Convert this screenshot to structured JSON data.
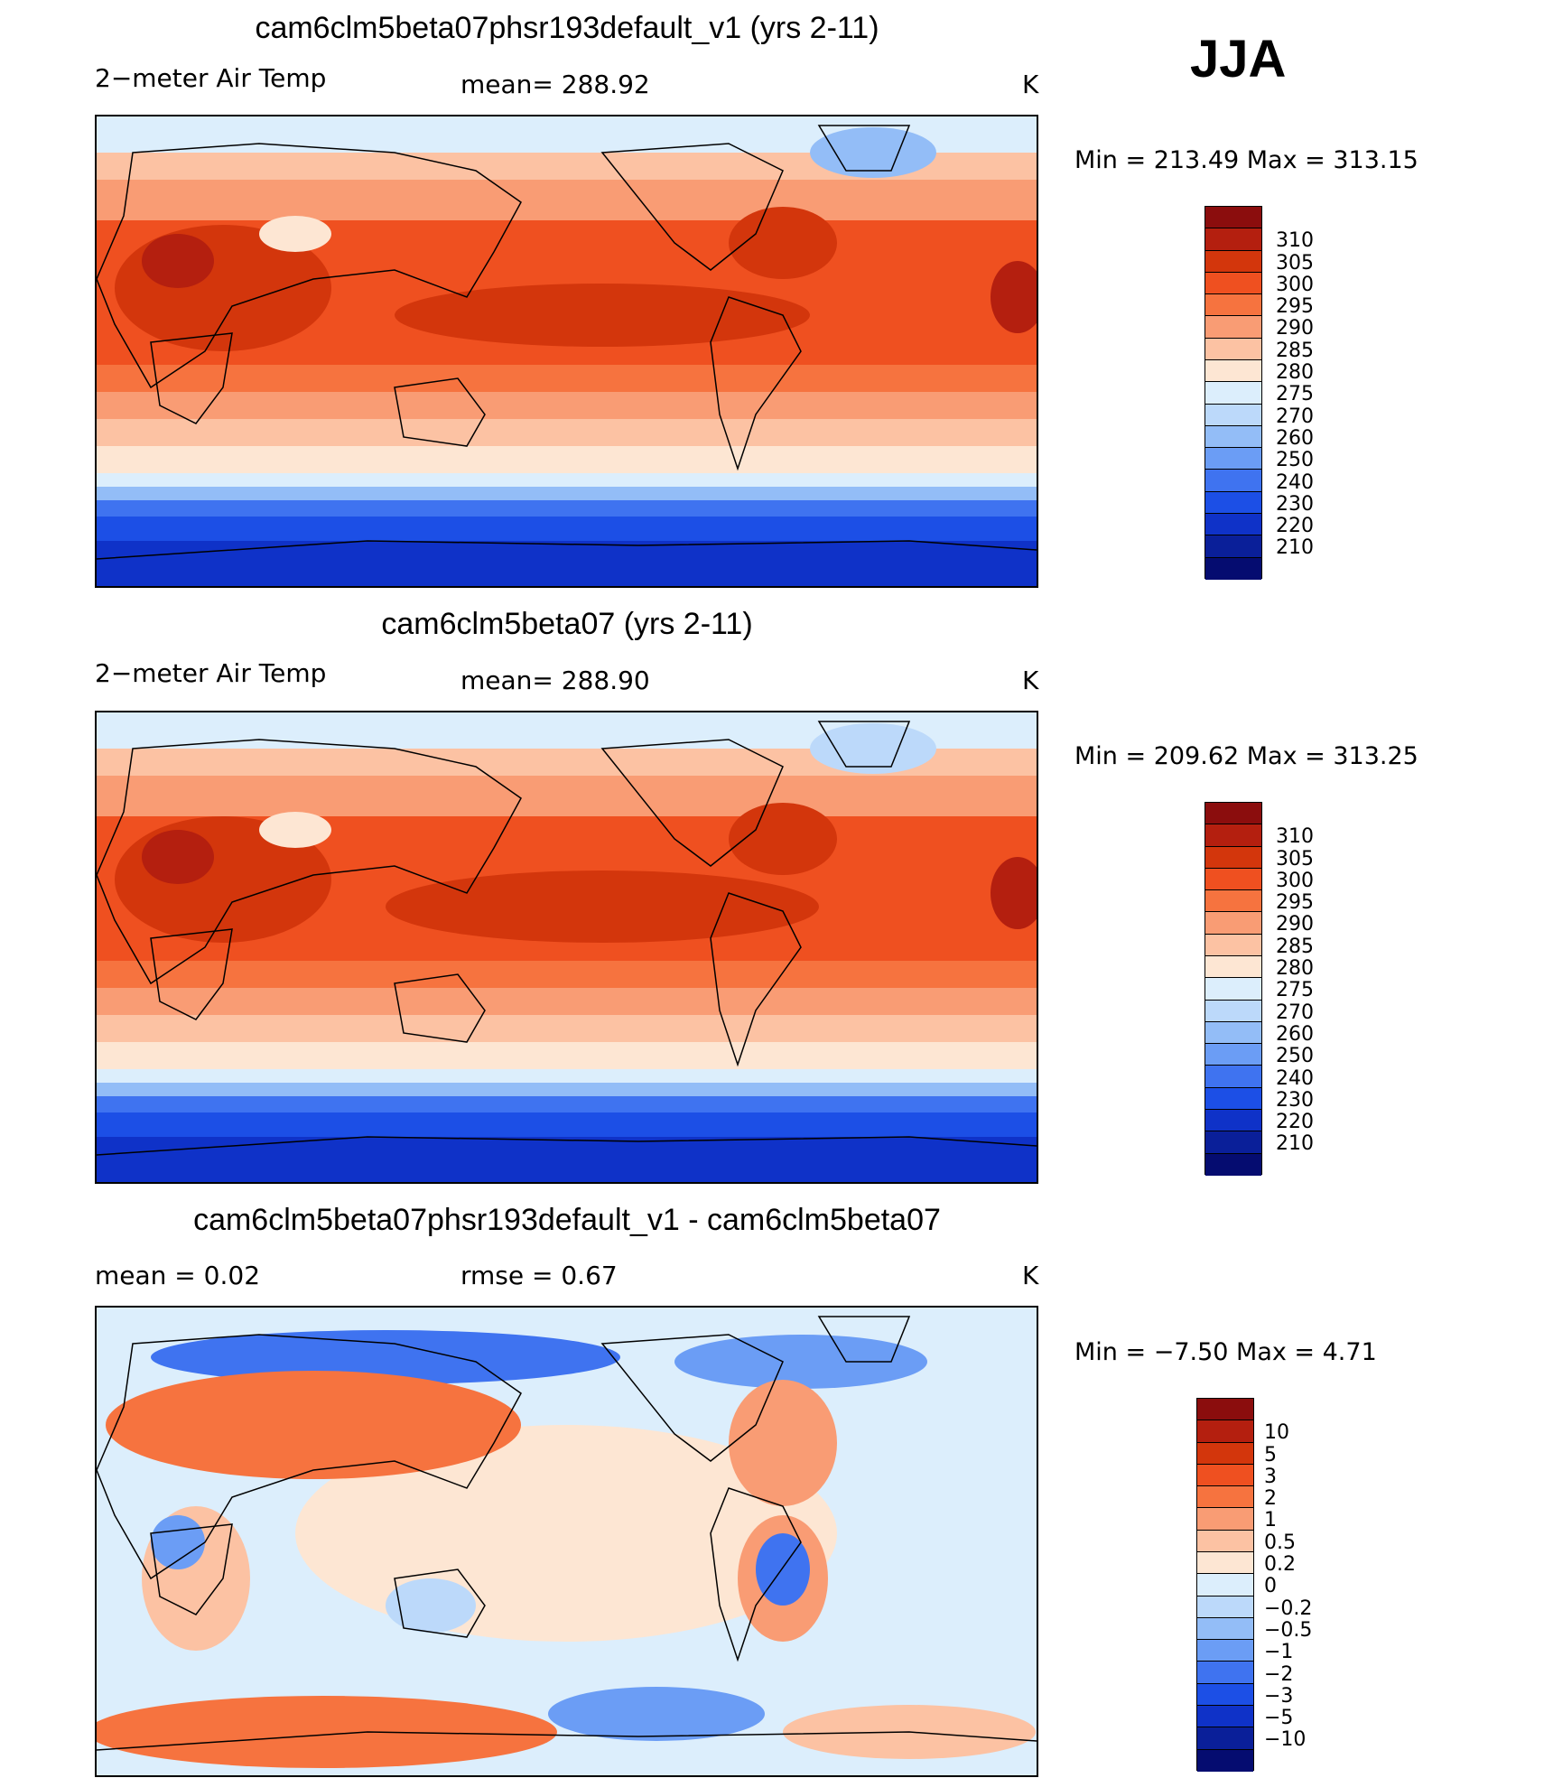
{
  "season": "JJA",
  "units": "K",
  "panels": [
    {
      "title": "cam6clm5beta07phsr193default_v1 (yrs 2-11)",
      "variable": "2−meter Air Temp",
      "mean_text": "mean=  288.92",
      "stats_text": "Min  =  213.49  Max  =  313.15",
      "colorbar": {
        "colors": [
          "#8b0d0d",
          "#b41f0f",
          "#d3360c",
          "#ef5020",
          "#f6733f",
          "#f99c74",
          "#fcc2a3",
          "#fde6d3",
          "#dceefc",
          "#bcd9fa",
          "#93bdf7",
          "#6b9df5",
          "#3f73f0",
          "#1c4fe6",
          "#0f32c8",
          "#0a1f99",
          "#050c70"
        ],
        "labels": [
          "310",
          "305",
          "300",
          "295",
          "290",
          "285",
          "280",
          "275",
          "270",
          "260",
          "250",
          "240",
          "230",
          "220",
          "210"
        ]
      }
    },
    {
      "title": "cam6clm5beta07 (yrs 2-11)",
      "variable": "2−meter Air Temp",
      "mean_text": "mean=  288.90",
      "stats_text": "Min  =  209.62  Max  =  313.25",
      "colorbar": {
        "colors": [
          "#8b0d0d",
          "#b41f0f",
          "#d3360c",
          "#ef5020",
          "#f6733f",
          "#f99c74",
          "#fcc2a3",
          "#fde6d3",
          "#dceefc",
          "#bcd9fa",
          "#93bdf7",
          "#6b9df5",
          "#3f73f0",
          "#1c4fe6",
          "#0f32c8",
          "#0a1f99",
          "#050c70"
        ],
        "labels": [
          "310",
          "305",
          "300",
          "295",
          "290",
          "285",
          "280",
          "275",
          "270",
          "260",
          "250",
          "240",
          "230",
          "220",
          "210"
        ]
      }
    },
    {
      "title": "cam6clm5beta07phsr193default_v1 - cam6clm5beta07",
      "mean_text": "mean  =      0.02",
      "rmse_text": "rmse  =      0.67",
      "stats_text": "Min  =     −7.50  Max  =       4.71",
      "colorbar": {
        "colors": [
          "#8b0d0d",
          "#b41f0f",
          "#d3360c",
          "#ef5020",
          "#f6733f",
          "#f99c74",
          "#fcc2a3",
          "#fde6d3",
          "#dceefc",
          "#bcd9fa",
          "#93bdf7",
          "#6b9df5",
          "#3f73f0",
          "#1c4fe6",
          "#0f32c8",
          "#0a1f99",
          "#050c70"
        ],
        "labels": [
          "10",
          "5",
          "3",
          "2",
          "1",
          "0.5",
          "0.2",
          "0",
          "−0.2",
          "−0.5",
          "−1",
          "−2",
          "−3",
          "−5",
          "−10"
        ]
      }
    }
  ]
}
